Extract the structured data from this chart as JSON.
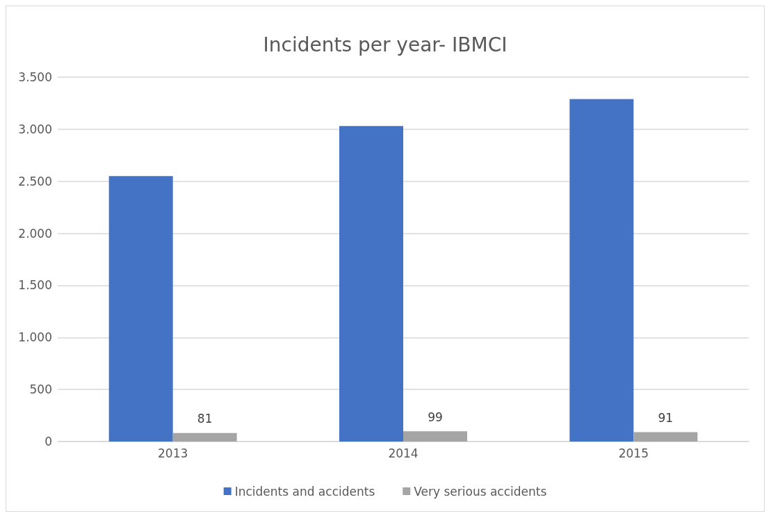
{
  "chart_data": {
    "type": "bar",
    "title": "Incidents per year- IBMCI",
    "categories": [
      "2013",
      "2014",
      "2015"
    ],
    "series": [
      {
        "name": "Incidents and accidents",
        "color": "#4472c4",
        "values": [
          2550,
          3030,
          3290
        ]
      },
      {
        "name": "Very serious accidents",
        "color": "#a5a5a5",
        "values": [
          81,
          99,
          91
        ],
        "value_labels": [
          "81",
          "99",
          "91"
        ]
      }
    ],
    "ylim": [
      0,
      3500
    ],
    "yticks": [
      0,
      {
        "value": 500,
        "label": "500"
      },
      {
        "value": 1000,
        "label": "1.000"
      },
      {
        "value": 1500,
        "label": "1.500"
      },
      {
        "value": 2000,
        "label": "2.000"
      },
      {
        "value": 2500,
        "label": "2.500"
      },
      {
        "value": 3000,
        "label": "3.000"
      },
      {
        "value": 3500,
        "label": "3.500"
      }
    ],
    "grid": "y",
    "legend": "bottom"
  }
}
